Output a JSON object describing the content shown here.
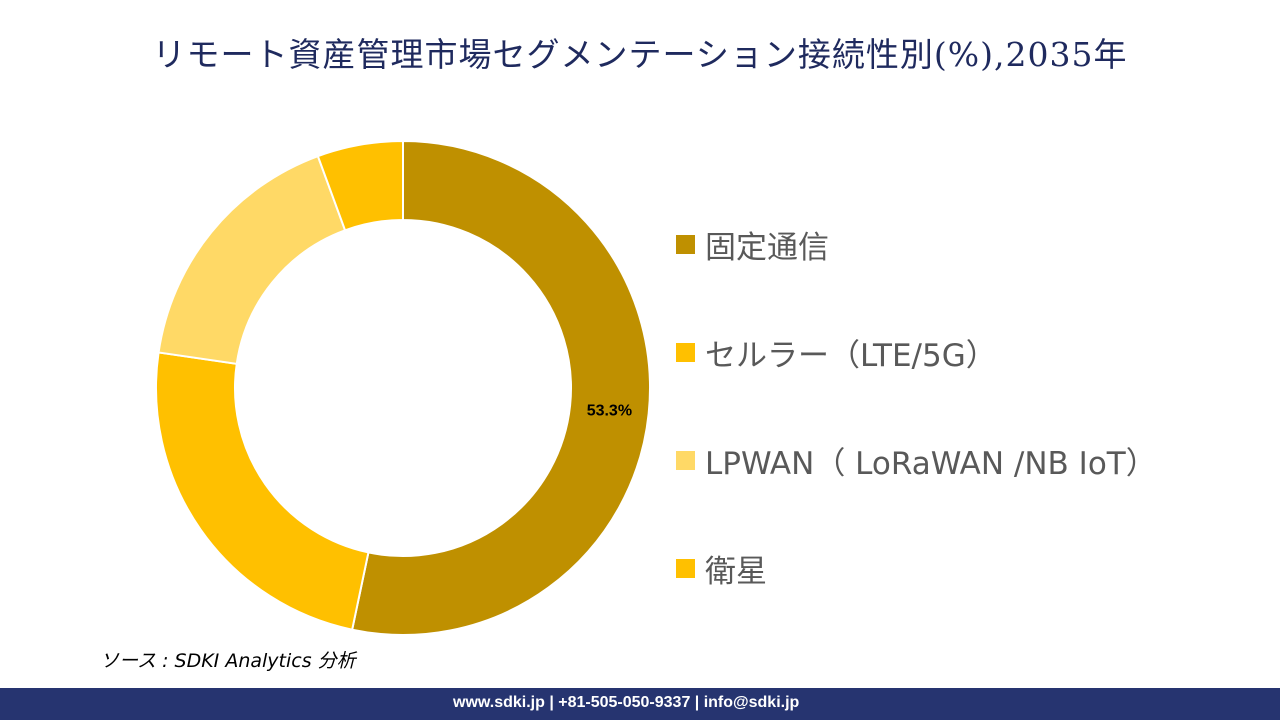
{
  "title": "リモート資産管理市場セグメンテーション接続性別(%),2035年",
  "chart_data": {
    "type": "pie",
    "donut": true,
    "title": "リモート資産管理市場セグメンテーション接続性別(%),2035年",
    "categories": [
      "固定通信",
      "セルラー（LTE/5G）",
      "LPWAN（ LoRaWAN /NB  IoT）",
      "衛星"
    ],
    "values": [
      53.3,
      24.0,
      17.1,
      5.6
    ],
    "colors": [
      "#BF9000",
      "#FFC000",
      "#FFD966",
      "#FFC000"
    ],
    "data_labels": [
      "53.3%",
      "",
      "",
      ""
    ],
    "legend_placement": "right",
    "start_angle": "top, clockwise"
  },
  "source": "ソース : SDKI Analytics 分析",
  "footer": "www.sdki.jp | +81-505-050-9337 | info@sdki.jp"
}
